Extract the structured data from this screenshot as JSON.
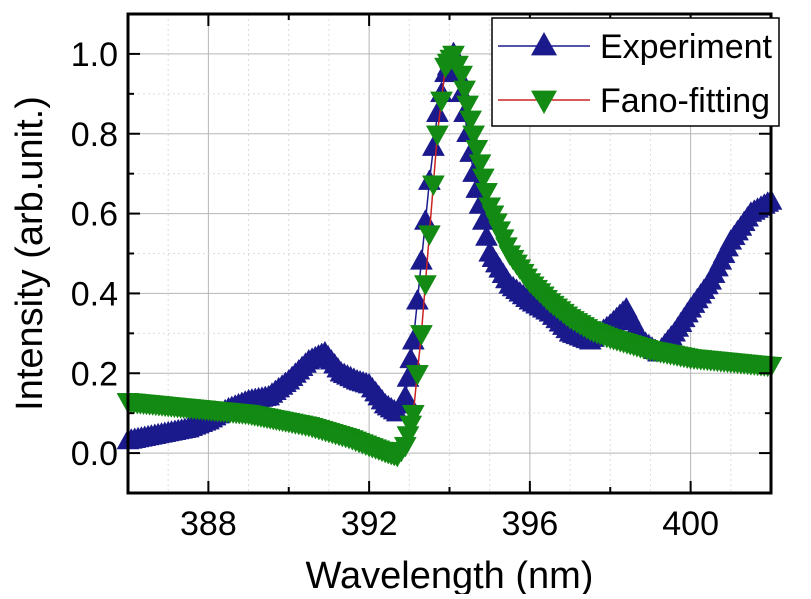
{
  "chart_data": {
    "type": "scatter",
    "title": "",
    "xlabel": "Wavelength (nm)",
    "ylabel": "Intensity (arb.unit.)",
    "xlim": [
      386,
      402
    ],
    "ylim": [
      -0.1,
      1.1
    ],
    "x_ticks": [
      388,
      392,
      396,
      400
    ],
    "x_tick_labels": [
      "388",
      "392",
      "396",
      "400"
    ],
    "y_ticks": [
      0.0,
      0.2,
      0.4,
      0.6,
      0.8,
      1.0
    ],
    "y_tick_labels": [
      "0.0",
      "0.2",
      "0.4",
      "0.6",
      "0.8",
      "1.0"
    ],
    "grid": true,
    "legend_position": "top-right",
    "series": [
      {
        "name": "Experiment",
        "marker": "triangle-up",
        "color": "#1a1a8c",
        "line_color": "#1a1a8c",
        "x": [
          386.0,
          386.5,
          387.0,
          387.5,
          388.0,
          388.5,
          389.0,
          389.5,
          390.0,
          390.5,
          390.9,
          391.3,
          391.7,
          392.0,
          392.4,
          392.7,
          392.9,
          393.1,
          393.3,
          393.5,
          393.7,
          393.9,
          394.1,
          394.3,
          394.6,
          395.0,
          395.5,
          396.0,
          396.5,
          397.0,
          397.5,
          398.0,
          398.4,
          398.8,
          399.2,
          399.6,
          400.0,
          400.5,
          401.0,
          401.5,
          402.0
        ],
        "y": [
          0.03,
          0.04,
          0.05,
          0.06,
          0.08,
          0.11,
          0.13,
          0.14,
          0.18,
          0.23,
          0.25,
          0.2,
          0.18,
          0.17,
          0.12,
          0.1,
          0.14,
          0.28,
          0.48,
          0.68,
          0.85,
          0.95,
          1.0,
          0.9,
          0.7,
          0.5,
          0.42,
          0.38,
          0.35,
          0.3,
          0.28,
          0.32,
          0.36,
          0.28,
          0.25,
          0.3,
          0.36,
          0.43,
          0.53,
          0.6,
          0.63
        ]
      },
      {
        "name": "Fano-fitting",
        "marker": "triangle-down",
        "color": "#138a13",
        "line_color": "#cc2222",
        "x": [
          386.0,
          387.0,
          388.0,
          389.0,
          390.0,
          390.5,
          391.0,
          391.5,
          392.0,
          392.4,
          392.7,
          392.9,
          393.1,
          393.3,
          393.5,
          393.7,
          393.9,
          394.1,
          394.3,
          394.6,
          395.0,
          395.5,
          396.0,
          396.5,
          397.0,
          397.5,
          398.0,
          398.5,
          399.0,
          399.5,
          400.0,
          400.5,
          401.0,
          401.5,
          402.0
        ],
        "y": [
          0.13,
          0.12,
          0.11,
          0.1,
          0.08,
          0.07,
          0.055,
          0.04,
          0.02,
          0.005,
          -0.005,
          0.02,
          0.1,
          0.3,
          0.55,
          0.8,
          0.97,
          1.0,
          0.95,
          0.8,
          0.62,
          0.5,
          0.43,
          0.38,
          0.34,
          0.31,
          0.29,
          0.275,
          0.26,
          0.25,
          0.24,
          0.235,
          0.23,
          0.225,
          0.22
        ]
      }
    ]
  }
}
